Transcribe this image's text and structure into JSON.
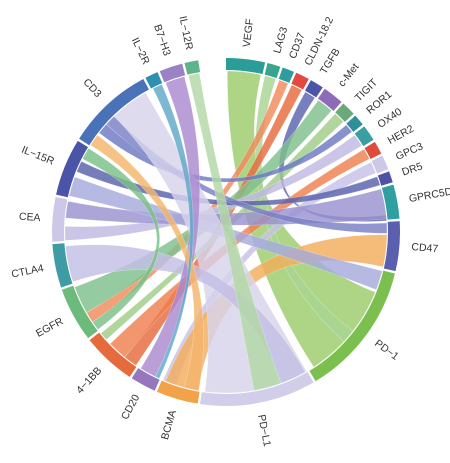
{
  "diagram": {
    "type": "chord",
    "segments": [
      {
        "label": "VEGF",
        "color": "#2a9d96",
        "start": 0,
        "end": 13
      },
      {
        "label": "LAG3",
        "color": "#3aa58f",
        "start": 13.8,
        "end": 18.2
      },
      {
        "label": "CD37",
        "color": "#2f9da0",
        "start": 19,
        "end": 23
      },
      {
        "label": "CLDN-18.2",
        "color": "#e24a3f",
        "start": 23.8,
        "end": 28.4
      },
      {
        "label": "TGFB",
        "color": "#4c55a8",
        "start": 29.2,
        "end": 33.8
      },
      {
        "label": "c-Met",
        "color": "#8e6bb8",
        "start": 34.6,
        "end": 41.6
      },
      {
        "label": "TIGIT",
        "color": "#6aaa7a",
        "start": 42.4,
        "end": 47.2
      },
      {
        "label": "ROR1",
        "color": "#2e8f9a",
        "start": 48,
        "end": 51.8
      },
      {
        "label": "OX40",
        "color": "#3a9fa3",
        "start": 52.6,
        "end": 58
      },
      {
        "label": "HER2",
        "color": "#e04c3c",
        "start": 58.8,
        "end": 63.2
      },
      {
        "label": "GPC3",
        "color": "#cdc7e8",
        "start": 64,
        "end": 68.8
      },
      {
        "label": "DR5",
        "color": "#4d52a4",
        "start": 69.6,
        "end": 73.4
      },
      {
        "label": "GPRC5D",
        "color": "#2f9fa2",
        "start": 74.2,
        "end": 85.6
      },
      {
        "label": "CD47",
        "color": "#5a5fae",
        "start": 86.4,
        "end": 103
      },
      {
        "label": "PD−1",
        "color": "#7bc04f",
        "start": 103.8,
        "end": 149
      },
      {
        "label": "PD−L1",
        "color": "#d2cde9",
        "start": 149.8,
        "end": 188.6
      },
      {
        "label": "BCMA",
        "color": "#f2a34a",
        "start": 189.4,
        "end": 203.4
      },
      {
        "label": "CD20",
        "color": "#9676bf",
        "start": 204.2,
        "end": 212.8
      },
      {
        "label": "4−1BB",
        "color": "#e56a3c",
        "start": 213.6,
        "end": 231.6
      },
      {
        "label": "EGFR",
        "color": "#6dbb7c",
        "start": 232.4,
        "end": 250.6
      },
      {
        "label": "CTLA4",
        "color": "#3e9da4",
        "start": 251.4,
        "end": 266
      },
      {
        "label": "CEA",
        "color": "#cdc7e8",
        "start": 266.8,
        "end": 281.6
      },
      {
        "label": "IL−15R",
        "color": "#4b55a8",
        "start": 282.4,
        "end": 301.6
      },
      {
        "label": "CD3",
        "color": "#4a72b8",
        "start": 302.4,
        "end": 331.6
      },
      {
        "label": "IL−2R",
        "color": "#2f8fb0",
        "start": 332.4,
        "end": 336.8
      },
      {
        "label": "B7−H3",
        "color": "#9a82c4",
        "start": 337.6,
        "end": 345.4
      },
      {
        "label": "IL−12R",
        "color": "#5fb38a",
        "start": 346.2,
        "end": 350.8
      }
    ],
    "ribbons": [
      {
        "a": [
          0.5,
          12.5
        ],
        "b": [
          112,
          147
        ],
        "color": "#9ccc6a"
      },
      {
        "a": [
          14,
          18
        ],
        "b": [
          128,
          133
        ],
        "color": "#aad492"
      },
      {
        "a": [
          19.3,
          22.7
        ],
        "b": [
          236,
          240
        ],
        "color": "#f08a5a"
      },
      {
        "a": [
          24.1,
          28.1
        ],
        "b": [
          214,
          219
        ],
        "color": "#e56a3c"
      },
      {
        "a": [
          29.5,
          33.5
        ],
        "b": [
          84,
          86
        ],
        "color": "#5a63b0"
      },
      {
        "a": [
          35,
          41
        ],
        "b": [
          240,
          250
        ],
        "color": "#7fbf8e"
      },
      {
        "a": [
          42.7,
          46.8
        ],
        "b": [
          228,
          231
        ],
        "color": "#9fcc87"
      },
      {
        "a": [
          48.3,
          51.5
        ],
        "b": [
          308,
          312
        ],
        "color": "#6b79c2"
      },
      {
        "a": [
          53,
          57.5
        ],
        "b": [
          267,
          272
        ],
        "color": "#c0b8e2"
      },
      {
        "a": [
          59,
          63
        ],
        "b": [
          219,
          226
        ],
        "color": "#ee7f4e"
      },
      {
        "a": [
          64.3,
          68.5
        ],
        "b": [
          198,
          203
        ],
        "color": "#c7c1e6"
      },
      {
        "a": [
          69.9,
          73.1
        ],
        "b": [
          292,
          296
        ],
        "color": "#5860ac"
      },
      {
        "a": [
          74.5,
          85.3
        ],
        "b": [
          275,
          281
        ],
        "color": "#9a91cf"
      },
      {
        "a": [
          86.8,
          90.5
        ],
        "b": [
          312,
          316
        ],
        "color": "#7a7fc4"
      },
      {
        "a": [
          91,
          102.5
        ],
        "b": [
          190,
          202
        ],
        "color": "#f3ad5c"
      },
      {
        "a": [
          104,
          111
        ],
        "b": [
          283,
          290
        ],
        "color": "#a6a9dc"
      },
      {
        "a": [
          150,
          187.5
        ],
        "b": [
          316,
          330
        ],
        "color": "#d7d3ec"
      },
      {
        "a": [
          150.5,
          160
        ],
        "b": [
          252,
          265
        ],
        "color": "#c3bee4"
      },
      {
        "a": [
          206,
          212
        ],
        "b": [
          338,
          345
        ],
        "color": "#a989cf"
      },
      {
        "a": [
          160,
          170
        ],
        "b": [
          346.5,
          350.5
        ],
        "color": "#b2d8a6"
      },
      {
        "a": [
          189.7,
          195
        ],
        "b": [
          302.7,
          307
        ],
        "color": "#f4b56b"
      },
      {
        "a": [
          204.5,
          206
        ],
        "b": [
          333,
          336.5
        ],
        "color": "#5fa8c8"
      },
      {
        "a": [
          232.7,
          236
        ],
        "b": [
          297,
          301.3
        ],
        "color": "#7abf88"
      }
    ]
  }
}
